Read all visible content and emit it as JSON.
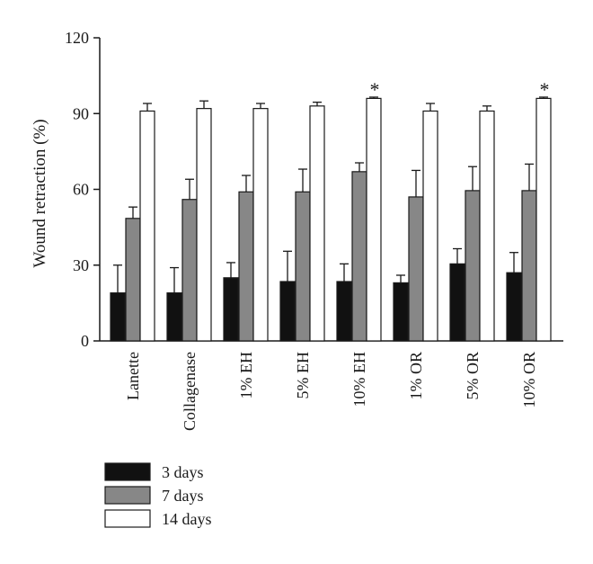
{
  "chart_data": {
    "type": "bar",
    "title": "",
    "xlabel": "",
    "ylabel": "Wound retraction (%)",
    "ylim": [
      0,
      120
    ],
    "yticks": [
      0,
      30,
      60,
      90,
      120
    ],
    "grid": false,
    "legend_position": "bottom-left",
    "categories": [
      "Lanette",
      "Collagenase",
      "1% EH",
      "5% EH",
      "10% EH",
      "1% OR",
      "5% OR",
      "10% OR"
    ],
    "series": [
      {
        "name": "3 days",
        "color": "#111111",
        "values": [
          19,
          19,
          25,
          23.5,
          23.5,
          23,
          30.5,
          27
        ],
        "errors": [
          11,
          10,
          6,
          12,
          7,
          3,
          6,
          8
        ]
      },
      {
        "name": "7 days",
        "color": "#878787",
        "values": [
          48.5,
          56,
          59,
          59,
          67,
          57,
          59.5,
          59.5
        ],
        "errors": [
          4.5,
          8,
          6.5,
          9,
          3.5,
          10.5,
          9.5,
          10.5
        ]
      },
      {
        "name": "14 days",
        "color": "#ffffff",
        "values": [
          91,
          92,
          92,
          93,
          96,
          91,
          91,
          96
        ],
        "errors": [
          3,
          3,
          2,
          1.5,
          0.5,
          3,
          2,
          0.5
        ]
      }
    ],
    "annotations": [
      {
        "category": "10% EH",
        "series": "14 days",
        "text": "*"
      },
      {
        "category": "10% OR",
        "series": "14 days",
        "text": "*"
      }
    ]
  }
}
